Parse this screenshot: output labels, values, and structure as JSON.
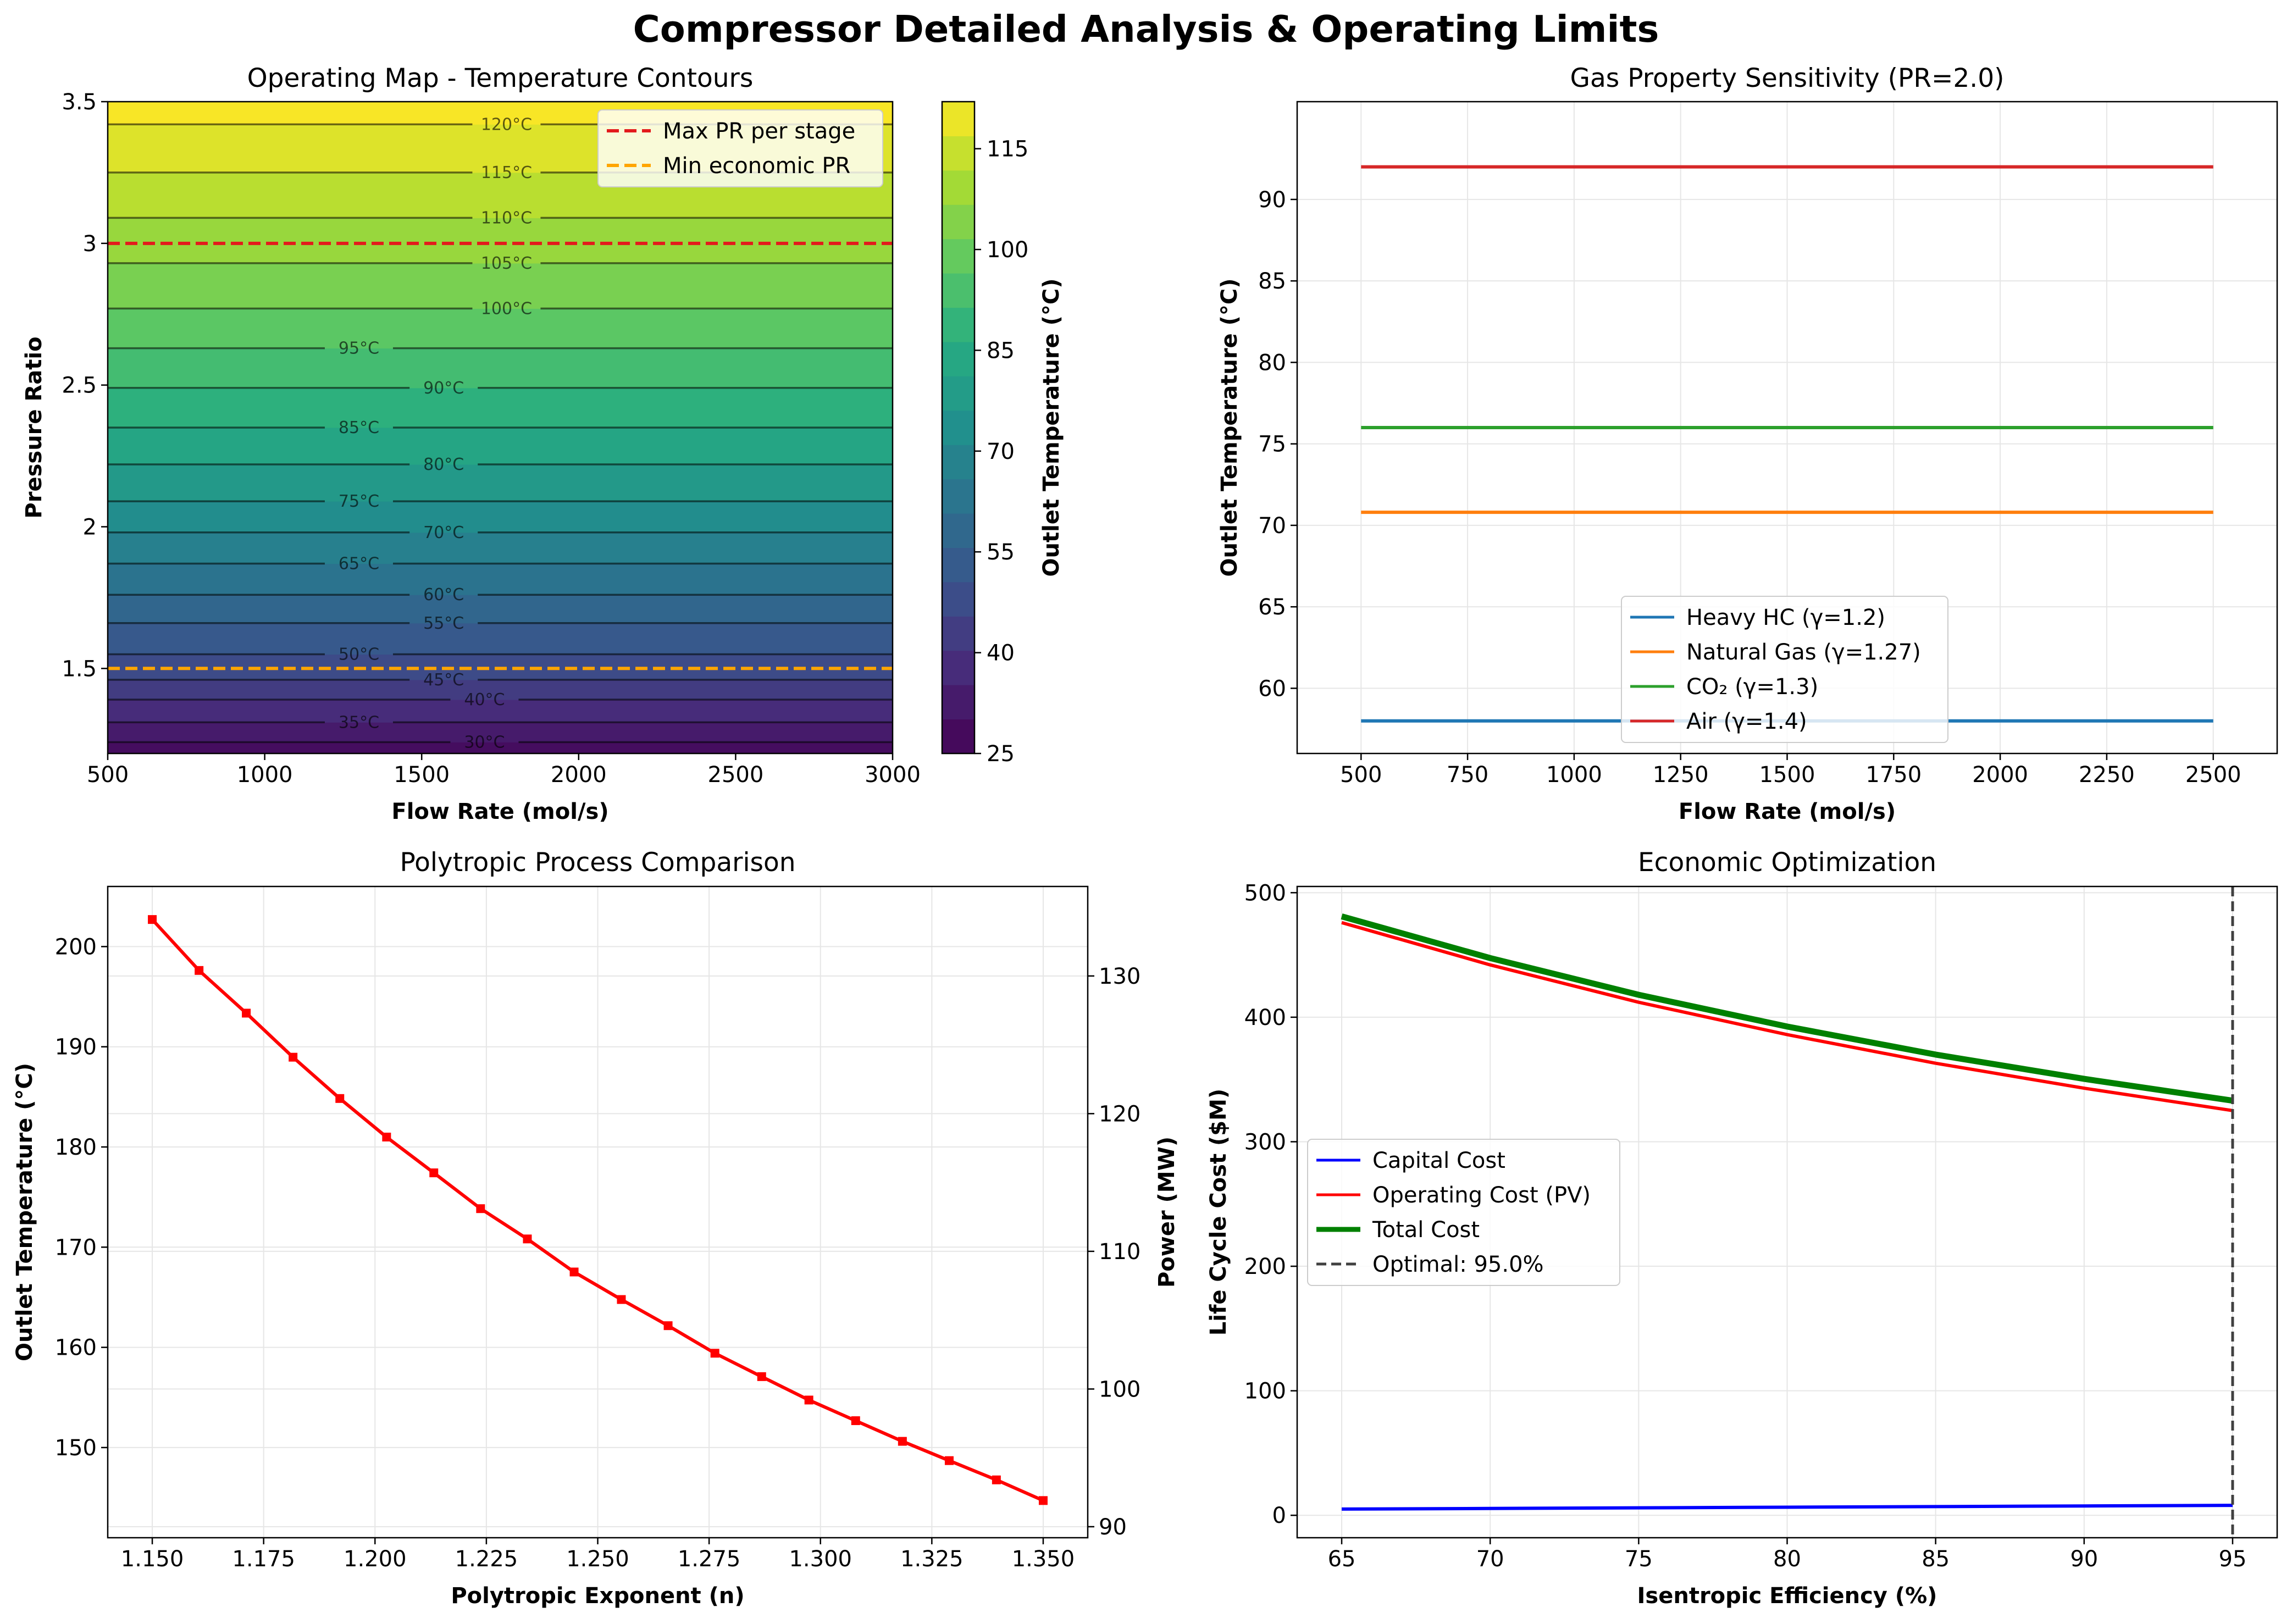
{
  "figure": {
    "title": "Compressor Detailed Analysis & Operating Limits"
  },
  "chart_data": [
    {
      "type": "heatmap",
      "title": "Operating Map - Temperature Contours",
      "xlabel": "Flow Rate (mol/s)",
      "ylabel": "Pressure Ratio",
      "xlim": [
        500,
        3000
      ],
      "ylim": [
        1.2,
        3.5
      ],
      "xticks": [
        500,
        1000,
        1500,
        2000,
        2500,
        3000
      ],
      "yticks": [
        1.5,
        2.0,
        2.5,
        3.0,
        3.5
      ],
      "colorbar": {
        "label": "Outlet Temperature (°C)",
        "range": [
          25,
          122
        ],
        "ticks": [
          25,
          40,
          55,
          70,
          85,
          100,
          115
        ],
        "colormap": "viridis"
      },
      "contours": [
        {
          "label": "30°C",
          "pr": 1.24,
          "label_x": 1700
        },
        {
          "label": "35°C",
          "pr": 1.31,
          "label_x": 1300
        },
        {
          "label": "40°C",
          "pr": 1.39,
          "label_x": 1700
        },
        {
          "label": "45°C",
          "pr": 1.46,
          "label_x": 1570
        },
        {
          "label": "50°C",
          "pr": 1.55,
          "label_x": 1300
        },
        {
          "label": "55°C",
          "pr": 1.66,
          "label_x": 1570
        },
        {
          "label": "60°C",
          "pr": 1.76,
          "label_x": 1570
        },
        {
          "label": "65°C",
          "pr": 1.87,
          "label_x": 1300
        },
        {
          "label": "70°C",
          "pr": 1.98,
          "label_x": 1570
        },
        {
          "label": "75°C",
          "pr": 2.09,
          "label_x": 1300
        },
        {
          "label": "80°C",
          "pr": 2.22,
          "label_x": 1570
        },
        {
          "label": "85°C",
          "pr": 2.35,
          "label_x": 1300
        },
        {
          "label": "90°C",
          "pr": 2.49,
          "label_x": 1570
        },
        {
          "label": "95°C",
          "pr": 2.63,
          "label_x": 1300
        },
        {
          "label": "100°C",
          "pr": 2.77,
          "label_x": 1770
        },
        {
          "label": "105°C",
          "pr": 2.93,
          "label_x": 1770
        },
        {
          "label": "110°C",
          "pr": 3.09,
          "label_x": 1770
        },
        {
          "label": "115°C",
          "pr": 3.25,
          "label_x": 1770
        },
        {
          "label": "120°C",
          "pr": 3.42,
          "label_x": 1770
        }
      ],
      "reference_lines": [
        {
          "name": "Max PR per stage",
          "y": 3.0,
          "color": "#e31a1c",
          "style": "dashed"
        },
        {
          "name": "Min economic PR",
          "y": 1.5,
          "color": "#ffa500",
          "style": "dashed"
        }
      ],
      "legend_position": "upper right"
    },
    {
      "type": "line",
      "title": "Gas Property Sensitivity (PR=2.0)",
      "xlabel": "Flow Rate (mol/s)",
      "ylabel": "Outlet Temperature (°C)",
      "xlim": [
        500,
        2500
      ],
      "ylim": [
        56,
        96
      ],
      "xticks": [
        500,
        750,
        1000,
        1250,
        1500,
        1750,
        2000,
        2250,
        2500
      ],
      "yticks": [
        60,
        65,
        70,
        75,
        80,
        85,
        90
      ],
      "grid": true,
      "x": [
        500,
        2500
      ],
      "series": [
        {
          "name": "Heavy HC (γ=1.2)",
          "values": [
            58.0,
            58.0
          ],
          "color": "#1f77b4"
        },
        {
          "name": "Natural Gas (γ=1.27)",
          "values": [
            70.8,
            70.8
          ],
          "color": "#ff7f0e"
        },
        {
          "name": "CO₂ (γ=1.3)",
          "values": [
            76.0,
            76.0
          ],
          "color": "#2ca02c"
        },
        {
          "name": "Air (γ=1.4)",
          "values": [
            92.0,
            92.0
          ],
          "color": "#d62728"
        }
      ],
      "legend_position": "lower center"
    },
    {
      "type": "line",
      "title": "Polytropic Process Comparison",
      "xlabel": "Polytropic Exponent (n)",
      "ylabel": "Outlet Temperature (°C)",
      "ylabel_right": "Power (MW)",
      "xlim": [
        1.14,
        1.36
      ],
      "ylim_left": [
        141,
        206
      ],
      "ylim_right": [
        89.2,
        136.5
      ],
      "xticks": [
        "1.150",
        "1.175",
        "1.200",
        "1.225",
        "1.250",
        "1.275",
        "1.300",
        "1.325",
        "1.350"
      ],
      "yticks_left": [
        150,
        160,
        170,
        180,
        190,
        200
      ],
      "yticks_right": [
        90,
        100,
        110,
        120,
        130
      ],
      "grid": true,
      "x": [
        1.15,
        1.1605,
        1.1711,
        1.1816,
        1.1921,
        1.2026,
        1.2132,
        1.2237,
        1.2342,
        1.2447,
        1.2553,
        1.2658,
        1.2763,
        1.2868,
        1.2974,
        1.3079,
        1.3184,
        1.3289,
        1.3395,
        1.35
      ],
      "series": [
        {
          "name": "Power (MW)",
          "axis": "right",
          "color": "#ff0000",
          "marker": "square",
          "values": [
            134.1,
            130.4,
            127.3,
            124.1,
            121.1,
            118.3,
            115.7,
            113.1,
            110.9,
            108.5,
            106.5,
            104.6,
            102.6,
            100.9,
            99.2,
            97.7,
            96.2,
            94.8,
            93.4,
            91.9
          ]
        }
      ]
    },
    {
      "type": "line",
      "title": "Economic Optimization",
      "xlabel": "Isentropic Efficiency (%)",
      "ylabel": "Life Cycle Cost ($M)",
      "xlim": [
        63.5,
        96.5
      ],
      "ylim": [
        -18,
        505
      ],
      "xticks": [
        65,
        70,
        75,
        80,
        85,
        90,
        95
      ],
      "yticks": [
        0,
        100,
        200,
        300,
        400,
        500
      ],
      "grid": true,
      "x": [
        65,
        70,
        75,
        80,
        85,
        90,
        95
      ],
      "series": [
        {
          "name": "Capital Cost",
          "values": [
            5,
            5.5,
            6,
            6.5,
            7,
            7.5,
            8
          ],
          "color": "#0000ff"
        },
        {
          "name": "Operating Cost (PV)",
          "values": [
            476,
            442,
            412,
            386,
            363,
            343,
            325
          ],
          "color": "#ff0000"
        },
        {
          "name": "Total Cost",
          "values": [
            481,
            447.5,
            418,
            392.5,
            370,
            350.5,
            333
          ],
          "color": "#008000"
        }
      ],
      "vline": {
        "name": "Optimal: 95.0%",
        "x": 95,
        "color": "#404040",
        "style": "dashed"
      },
      "legend_position": "center left"
    }
  ]
}
